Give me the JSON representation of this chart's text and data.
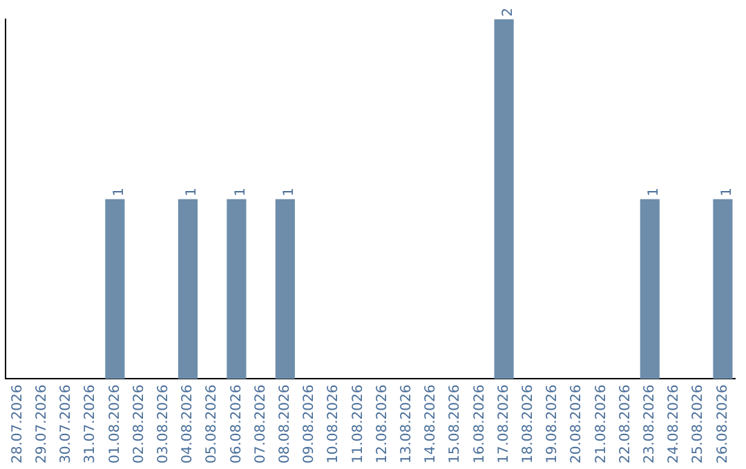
{
  "chart_data": {
    "type": "bar",
    "categories": [
      "28.07.2026",
      "29.07.2026",
      "30.07.2026",
      "31.07.2026",
      "01.08.2026",
      "02.08.2026",
      "03.08.2026",
      "04.08.2026",
      "05.08.2026",
      "06.08.2026",
      "07.08.2026",
      "08.08.2026",
      "09.08.2026",
      "10.08.2026",
      "11.08.2026",
      "12.08.2026",
      "13.08.2026",
      "14.08.2026",
      "15.08.2026",
      "16.08.2026",
      "17.08.2026",
      "18.08.2026",
      "19.08.2026",
      "20.08.2026",
      "21.08.2026",
      "22.08.2026",
      "23.08.2026",
      "24.08.2026",
      "25.08.2026",
      "26.08.2026"
    ],
    "values": [
      0,
      0,
      0,
      0,
      1,
      0,
      0,
      1,
      0,
      1,
      0,
      1,
      0,
      0,
      0,
      0,
      0,
      0,
      0,
      0,
      2,
      0,
      0,
      0,
      0,
      0,
      1,
      0,
      0,
      1
    ],
    "value_labels": [
      null,
      null,
      null,
      null,
      "1",
      null,
      null,
      "1",
      null,
      "1",
      null,
      "1",
      null,
      null,
      null,
      null,
      null,
      null,
      null,
      null,
      "2",
      null,
      null,
      null,
      null,
      null,
      "1",
      null,
      null,
      "1"
    ],
    "color": "#6d8dab",
    "ylim": [
      0,
      2
    ],
    "grid": false,
    "legend": false,
    "tick_labels": "x"
  }
}
